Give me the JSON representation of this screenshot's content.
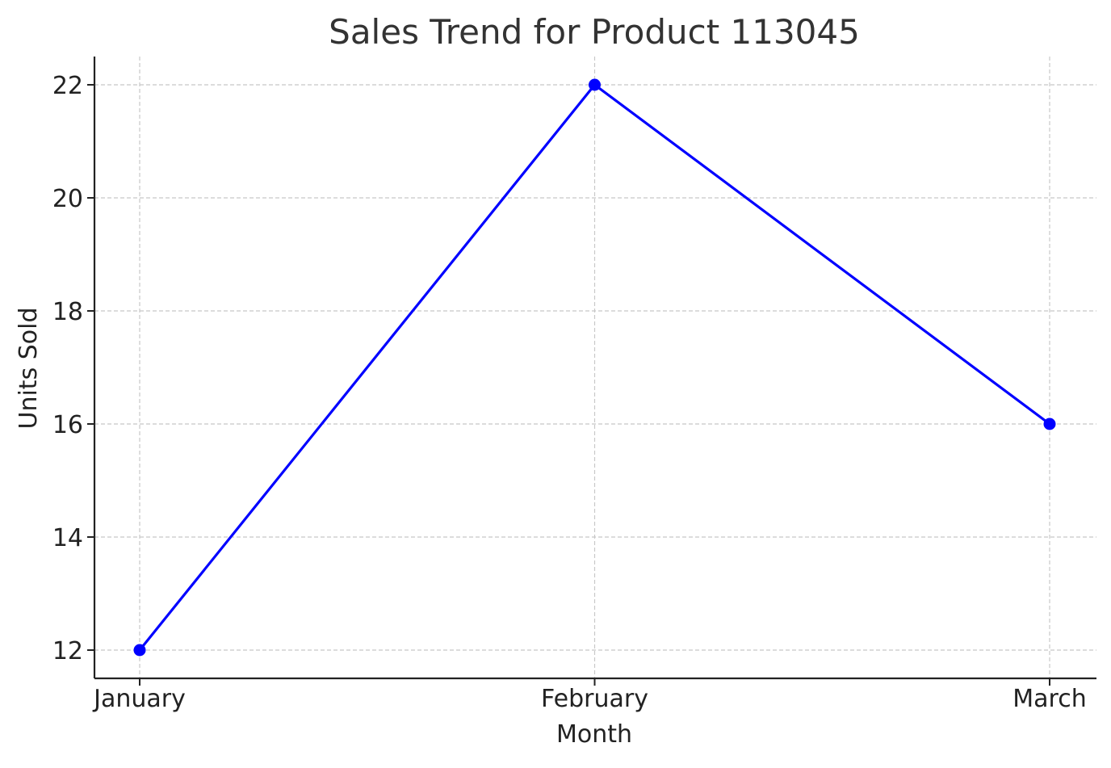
{
  "chart_data": {
    "type": "line",
    "title": "Sales Trend for Product 113045",
    "xlabel": "Month",
    "ylabel": "Units Sold",
    "categories": [
      "January",
      "February",
      "March"
    ],
    "series": [
      {
        "values": [
          12,
          22,
          16
        ]
      }
    ],
    "yticks": [
      12,
      14,
      16,
      18,
      20,
      22
    ],
    "ylim": [
      11.5,
      22.5
    ],
    "grid": true,
    "marker": "circle",
    "line_color": "#0000ff",
    "grid_color": "#c8c8c8",
    "axis_color": "#222222"
  }
}
